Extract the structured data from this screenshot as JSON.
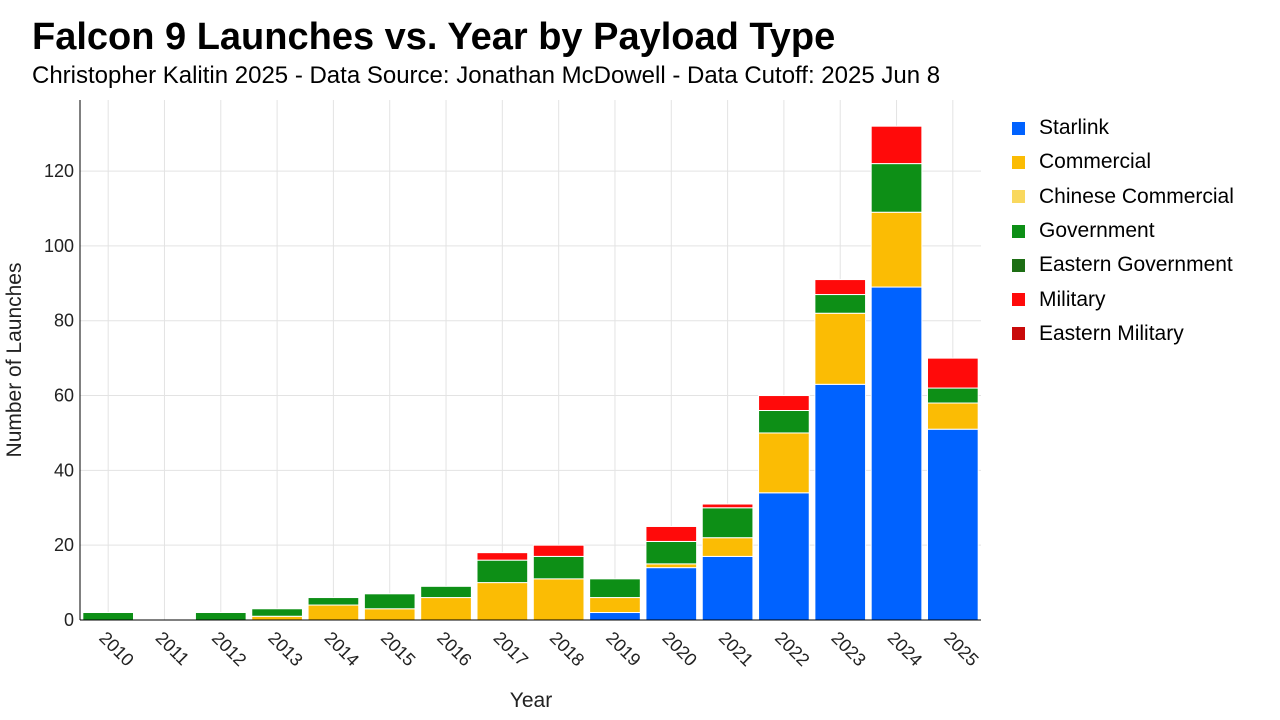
{
  "chart_data": {
    "type": "bar",
    "stacked": true,
    "title": "Falcon 9 Launches vs. Year by Payload Type",
    "subtitle": "Christopher Kalitin 2025 - Data Source: Jonathan McDowell - Data Cutoff: 2025 Jun 8",
    "xlabel": "Year",
    "ylabel": "Number of Launches",
    "ylim": [
      0,
      139
    ],
    "yticks": [
      0,
      20,
      40,
      60,
      80,
      100,
      120
    ],
    "grid": true,
    "legend_position": "right",
    "categories": [
      "2010",
      "2011",
      "2012",
      "2013",
      "2014",
      "2015",
      "2016",
      "2017",
      "2018",
      "2019",
      "2020",
      "2021",
      "2022",
      "2023",
      "2024",
      "2025"
    ],
    "series": [
      {
        "name": "Starlink",
        "color": "#0062ff",
        "values": [
          0,
          0,
          0,
          0,
          0,
          0,
          0,
          0,
          0,
          2,
          14,
          17,
          34,
          63,
          89,
          51
        ]
      },
      {
        "name": "Commercial",
        "color": "#fbbc04",
        "values": [
          0,
          0,
          0,
          1,
          4,
          3,
          6,
          10,
          11,
          4,
          1,
          5,
          16,
          19,
          20,
          7
        ]
      },
      {
        "name": "Chinese Commercial",
        "color": "#f9d85e",
        "values": [
          0,
          0,
          0,
          0,
          0,
          0,
          0,
          0,
          0,
          0,
          0,
          0,
          0,
          0,
          0,
          0
        ]
      },
      {
        "name": "Government",
        "color": "#0d8f16",
        "values": [
          2,
          0,
          2,
          2,
          2,
          4,
          3,
          6,
          6,
          5,
          6,
          8,
          6,
          5,
          13,
          4
        ]
      },
      {
        "name": "Eastern Government",
        "color": "#1d6e14",
        "values": [
          0,
          0,
          0,
          0,
          0,
          0,
          0,
          0,
          0,
          0,
          0,
          0,
          0,
          0,
          0,
          0
        ]
      },
      {
        "name": "Military",
        "color": "#ff0a0a",
        "values": [
          0,
          0,
          0,
          0,
          0,
          0,
          0,
          2,
          3,
          0,
          4,
          1,
          4,
          4,
          10,
          8
        ]
      },
      {
        "name": "Eastern Military",
        "color": "#c90a0a",
        "values": [
          0,
          0,
          0,
          0,
          0,
          0,
          0,
          0,
          0,
          0,
          0,
          0,
          0,
          0,
          0,
          0
        ]
      }
    ]
  }
}
